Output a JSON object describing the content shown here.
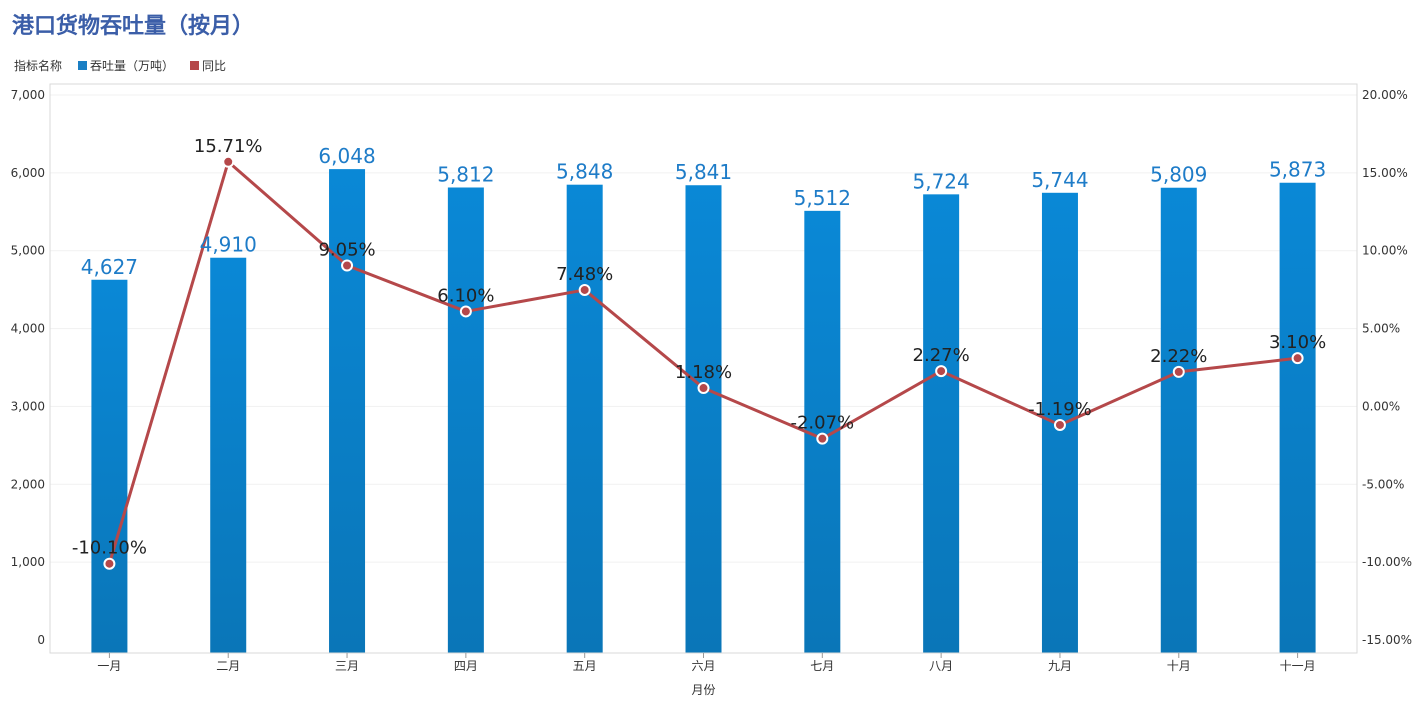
{
  "title": "港口货物吞吐量（按月）",
  "legend": {
    "heading": "指标名称",
    "items": [
      {
        "label": "吞吐量（万吨）",
        "color": "#1a7fc4"
      },
      {
        "label": "同比",
        "color": "#b5484a"
      }
    ]
  },
  "chart_data": {
    "type": "bar",
    "categories": [
      "一月",
      "二月",
      "三月",
      "四月",
      "五月",
      "六月",
      "七月",
      "八月",
      "九月",
      "十月",
      "十一月"
    ],
    "xlabel": "月份",
    "series": [
      {
        "name": "吞吐量（万吨）",
        "type": "bar",
        "axis": "left",
        "values": [
          4627,
          4910,
          6048,
          5812,
          5848,
          5841,
          5512,
          5724,
          5744,
          5809,
          5873
        ],
        "labels": [
          "4,627",
          "4,910",
          "6,048",
          "5,812",
          "5,848",
          "5,841",
          "5,512",
          "5,724",
          "5,744",
          "5,809",
          "5,873"
        ],
        "color": "#1a7fc4"
      },
      {
        "name": "同比",
        "type": "line",
        "axis": "right",
        "values": [
          -10.1,
          15.71,
          9.05,
          6.1,
          7.48,
          1.18,
          -2.07,
          2.27,
          -1.19,
          2.22,
          3.1
        ],
        "labels": [
          "-10.10%",
          "15.71%",
          "9.05%",
          "6.10%",
          "7.48%",
          "1.18%",
          "-2.07%",
          "2.27%",
          "-1.19%",
          "2.22%",
          "3.10%"
        ],
        "color": "#b5484a"
      }
    ],
    "y_left": {
      "range": [
        0,
        7000
      ],
      "ticks": [
        0,
        1000,
        2000,
        3000,
        4000,
        5000,
        6000,
        7000
      ],
      "tick_labels": [
        "0",
        "1,000",
        "2,000",
        "3,000",
        "4,000",
        "5,000",
        "6,000",
        "7,000"
      ]
    },
    "y_right": {
      "range": [
        -15,
        20
      ],
      "ticks": [
        -15,
        -10,
        -5,
        0,
        5,
        10,
        15,
        20
      ],
      "tick_labels": [
        "-15.00%",
        "-10.00%",
        "-5.00%",
        "0.00%",
        "5.00%",
        "10.00%",
        "15.00%",
        "20.00%"
      ]
    },
    "grid": true,
    "legend_position": "top-left"
  }
}
